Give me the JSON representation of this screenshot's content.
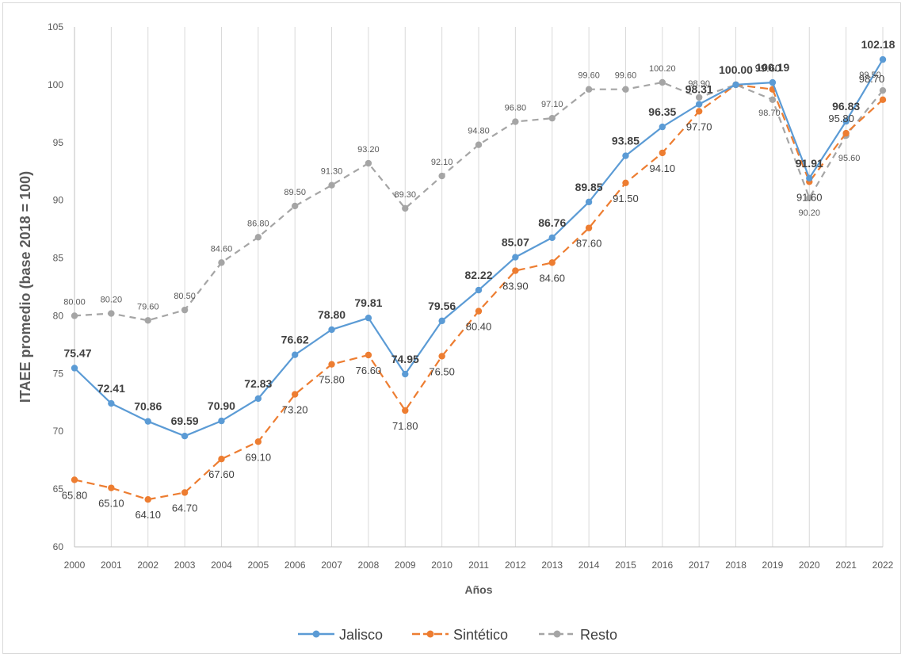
{
  "chart_data": {
    "type": "line",
    "title": "",
    "xlabel": "Años",
    "ylabel": "ITAEE promedio (base 2018 = 100)",
    "ylim": [
      60,
      105
    ],
    "yticks": [
      "60",
      "65",
      "70",
      "75",
      "80",
      "85",
      "90",
      "95",
      "100",
      "105"
    ],
    "grid": "vertical",
    "legend": "bottom-center",
    "x": [
      "2000",
      "2001",
      "2002",
      "2003",
      "2004",
      "2005",
      "2006",
      "2007",
      "2008",
      "2009",
      "2010",
      "2011",
      "2012",
      "2013",
      "2014",
      "2015",
      "2016",
      "2017",
      "2018",
      "2019",
      "2020",
      "2021",
      "2022"
    ],
    "series": [
      {
        "name": "Jalisco",
        "color": "#5b9bd5",
        "style": "solid",
        "values": [
          75.47,
          72.41,
          70.86,
          69.59,
          70.9,
          72.83,
          76.62,
          78.8,
          79.81,
          74.95,
          79.56,
          82.22,
          85.07,
          86.76,
          89.85,
          93.85,
          96.35,
          98.31,
          100.0,
          100.19,
          91.91,
          96.83,
          102.18
        ],
        "labels": [
          "75.47",
          "72.41",
          "70.86",
          "69.59",
          "70.90",
          "72.83",
          "76.62",
          "78.80",
          "79.81",
          "74.95",
          "79.56",
          "82.22",
          "85.07",
          "86.76",
          "89.85",
          "93.85",
          "96.35",
          "98.31",
          "100.00",
          "100.19",
          "91.91",
          "96.83",
          "102.18"
        ]
      },
      {
        "name": "Sintético",
        "color": "#ed7d31",
        "style": "dashed",
        "values": [
          65.8,
          65.1,
          64.1,
          64.7,
          67.6,
          69.1,
          73.2,
          75.8,
          76.6,
          71.8,
          76.5,
          80.4,
          83.9,
          84.6,
          87.6,
          91.5,
          94.1,
          97.7,
          100.0,
          99.6,
          91.6,
          95.8,
          98.7
        ],
        "labels": [
          "65.80",
          "65.10",
          "64.10",
          "64.70",
          "67.60",
          "69.10",
          "73.20",
          "75.80",
          "76.60",
          "71.80",
          "76.50",
          "80.40",
          "83.90",
          "84.60",
          "87.60",
          "91.50",
          "94.10",
          "97.70",
          "",
          "99.60",
          "91.60",
          "95.80",
          "98.70"
        ]
      },
      {
        "name": "Resto",
        "color": "#a5a5a5",
        "style": "dashed",
        "values": [
          80.0,
          80.2,
          79.6,
          80.5,
          84.6,
          86.8,
          89.5,
          91.3,
          93.2,
          89.3,
          92.1,
          94.8,
          96.8,
          97.1,
          99.6,
          99.6,
          100.2,
          98.9,
          100.0,
          98.7,
          90.2,
          95.6,
          99.5
        ],
        "labels": [
          "80.00",
          "80.20",
          "79.60",
          "80.50",
          "84.60",
          "86.80",
          "89.50",
          "91.30",
          "93.20",
          "89.30",
          "92.10",
          "94.80",
          "96.80",
          "97.10",
          "99.60",
          "99.60",
          "100.20",
          "98.90",
          "",
          "98.70",
          "90.20",
          "95.60",
          "99.50"
        ]
      }
    ]
  }
}
